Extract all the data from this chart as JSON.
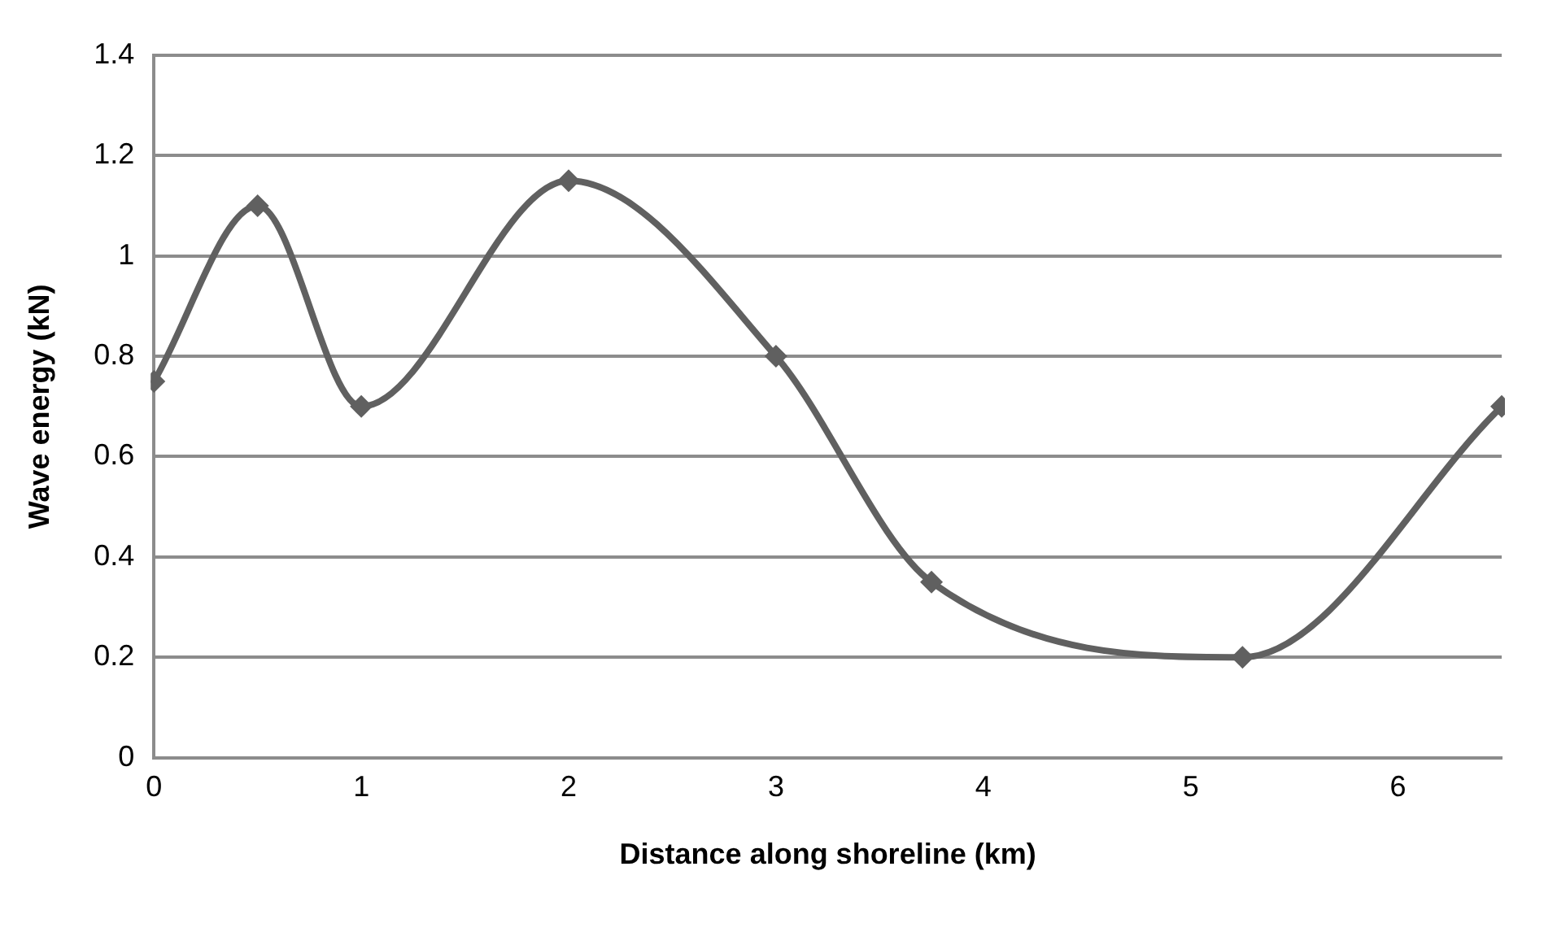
{
  "chart_data": {
    "type": "line",
    "xlabel": "Distance along shoreline (km)",
    "ylabel": "Wave energy (kN)",
    "x": [
      0,
      0.5,
      1,
      2,
      3,
      3.75,
      5.25,
      6.5
    ],
    "series": [
      {
        "color": "#606060",
        "values": [
          0.75,
          1.1,
          0.7,
          1.15,
          0.8,
          0.35,
          0.2,
          0.7
        ]
      }
    ],
    "xlim": [
      0,
      6.5
    ],
    "xticks": [
      0,
      1,
      2,
      3,
      4,
      5,
      6
    ],
    "ylim": [
      0,
      1.4
    ],
    "yticks": [
      0,
      0.2,
      0.4,
      0.6,
      0.8,
      1,
      1.2,
      1.4
    ],
    "grid": "y",
    "legend": false,
    "marker": "diamond",
    "line_style": "solid"
  }
}
